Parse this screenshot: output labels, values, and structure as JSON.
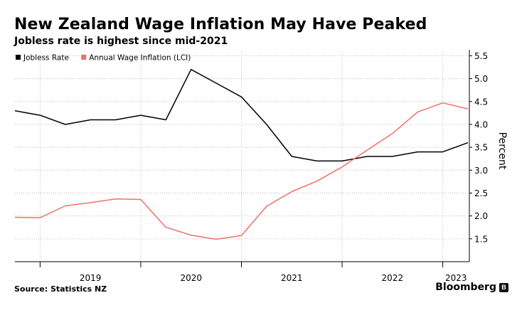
{
  "title": "New Zealand Wage Inflation May Have Peaked",
  "subtitle": "Jobless rate is highest since mid-2021",
  "source": "Source: Statistics NZ",
  "brand": "Bloomberg",
  "chart_data": {
    "type": "line",
    "ylabel": "Percent",
    "y_axis_position": "right",
    "ylim": [
      1.0,
      5.6
    ],
    "yticks": [
      1.5,
      2.0,
      2.5,
      3.0,
      3.5,
      4.0,
      4.5,
      5.0,
      5.5
    ],
    "ytick_labels": [
      "1.5",
      "2.0",
      "2.5",
      "3.0",
      "3.5",
      "4.0",
      "4.5",
      "5.0",
      "5.5"
    ],
    "x_labels": [
      "2019",
      "2020",
      "2021",
      "2022",
      "2023"
    ],
    "x": [
      "2018-Q4",
      "2019-Q1",
      "2019-Q2",
      "2019-Q3",
      "2019-Q4",
      "2020-Q1",
      "2020-Q2",
      "2020-Q3",
      "2020-Q4",
      "2021-Q1",
      "2021-Q2",
      "2021-Q3",
      "2021-Q4",
      "2022-Q1",
      "2022-Q2",
      "2022-Q3",
      "2022-Q4",
      "2023-Q1",
      "2023-Q2"
    ],
    "grid": true,
    "legend_position": "top-left",
    "series": [
      {
        "name": "Jobless Rate",
        "color": "#000000",
        "values": [
          4.3,
          4.2,
          4.0,
          4.1,
          4.1,
          4.2,
          4.1,
          5.2,
          4.9,
          4.6,
          4.0,
          3.3,
          3.2,
          3.2,
          3.3,
          3.3,
          3.4,
          3.4,
          3.6
        ]
      },
      {
        "name": "Annual Wage Inflation (LCI)",
        "color": "#f0706a",
        "values": [
          1.97,
          1.96,
          2.22,
          2.29,
          2.37,
          2.36,
          1.75,
          1.58,
          1.49,
          1.57,
          2.21,
          2.53,
          2.76,
          3.07,
          3.44,
          3.8,
          4.27,
          4.47,
          4.34
        ]
      }
    ]
  }
}
